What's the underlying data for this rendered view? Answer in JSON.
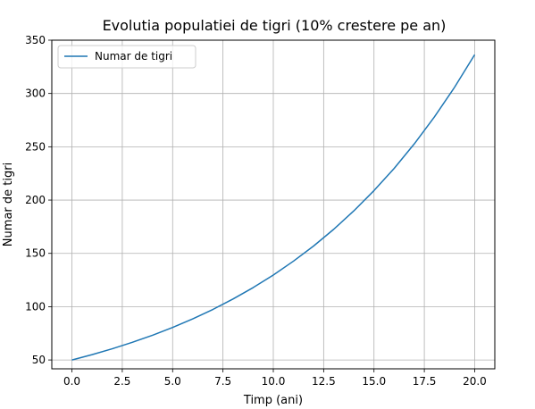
{
  "chart_data": {
    "type": "line",
    "title": "Evolutia populatiei de tigri (10% crestere pe an)",
    "xlabel": "Timp (ani)",
    "ylabel": "Numar de tigri",
    "xlim": [
      -1.0,
      21.0
    ],
    "ylim": [
      41.7,
      350
    ],
    "xticks": [
      0.0,
      2.5,
      5.0,
      7.5,
      10.0,
      12.5,
      15.0,
      17.5,
      20.0
    ],
    "xtick_labels": [
      "0.0",
      "2.5",
      "5.0",
      "7.5",
      "10.0",
      "12.5",
      "15.0",
      "17.5",
      "20.0"
    ],
    "yticks": [
      50,
      100,
      150,
      200,
      250,
      300,
      350
    ],
    "ytick_labels": [
      "50",
      "100",
      "150",
      "200",
      "250",
      "300",
      "350"
    ],
    "grid": true,
    "legend_position": "top-left",
    "series": [
      {
        "name": "Numar de tigri",
        "color": "#1f77b4",
        "x": [
          0,
          1,
          2,
          3,
          4,
          5,
          6,
          7,
          8,
          9,
          10,
          11,
          12,
          13,
          14,
          15,
          16,
          17,
          18,
          19,
          20
        ],
        "y": [
          50.0,
          55.0,
          60.5,
          66.6,
          73.2,
          80.5,
          88.6,
          97.4,
          107.2,
          117.9,
          129.7,
          142.7,
          156.9,
          172.6,
          189.9,
          208.9,
          229.7,
          252.7,
          278.0,
          305.8,
          336.4
        ]
      }
    ]
  }
}
